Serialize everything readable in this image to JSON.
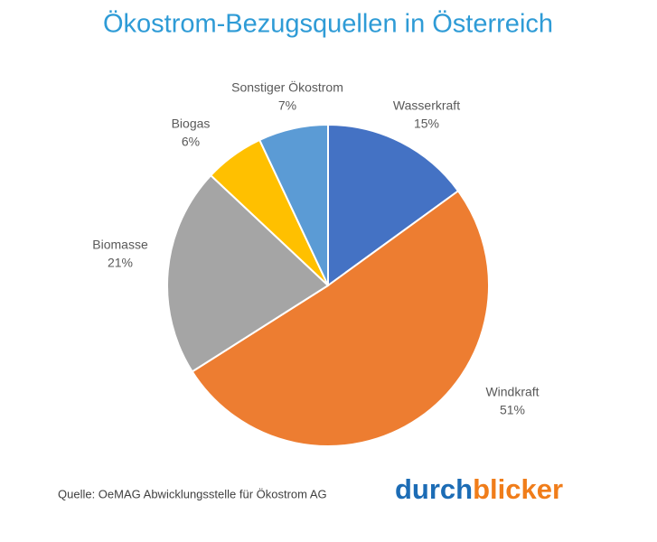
{
  "chart_data": {
    "type": "pie",
    "title": "Ökostrom-Bezugsquellen in Österreich",
    "categories": [
      "Wasserkraft",
      "Windkraft",
      "Biomasse",
      "Biogas",
      "Sonstiger Ökostrom"
    ],
    "values": [
      15,
      51,
      21,
      6,
      7
    ],
    "value_labels": [
      "15%",
      "51%",
      "21%",
      "6%",
      "7%"
    ],
    "colors": [
      "#4472c4",
      "#ed7d31",
      "#a5a5a5",
      "#ffc000",
      "#5b9bd5"
    ],
    "source": "Quelle: OeMAG Abwicklungsstelle für Ökostrom AG",
    "logo": [
      "durch",
      "blicker"
    ]
  }
}
